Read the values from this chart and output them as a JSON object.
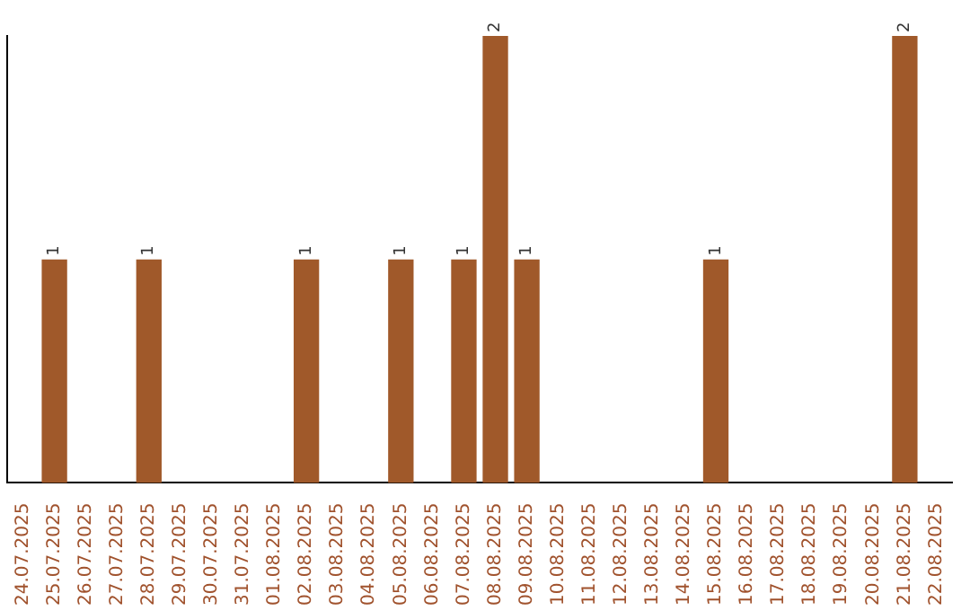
{
  "chart_data": {
    "type": "bar",
    "categories": [
      "24.07.2025",
      "25.07.2025",
      "26.07.2025",
      "27.07.2025",
      "28.07.2025",
      "29.07.2025",
      "30.07.2025",
      "31.07.2025",
      "01.08.2025",
      "02.08.2025",
      "03.08.2025",
      "04.08.2025",
      "05.08.2025",
      "06.08.2025",
      "07.08.2025",
      "08.08.2025",
      "09.08.2025",
      "10.08.2025",
      "11.08.2025",
      "12.08.2025",
      "13.08.2025",
      "14.08.2025",
      "15.08.2025",
      "16.08.2025",
      "17.08.2025",
      "18.08.2025",
      "19.08.2025",
      "20.08.2025",
      "21.08.2025",
      "22.08.2025"
    ],
    "values": [
      0,
      1,
      0,
      0,
      1,
      0,
      0,
      0,
      0,
      1,
      0,
      0,
      1,
      0,
      1,
      2,
      1,
      0,
      0,
      0,
      0,
      0,
      1,
      0,
      0,
      0,
      0,
      0,
      2,
      0
    ],
    "color": "#a0592a",
    "ylim": [
      0,
      2
    ],
    "tick_labels": "x",
    "value_labels": [
      null,
      "1",
      null,
      null,
      "1",
      null,
      null,
      null,
      null,
      "1",
      null,
      null,
      "1",
      null,
      "1",
      "2",
      "1",
      null,
      null,
      null,
      null,
      null,
      "1",
      null,
      null,
      null,
      null,
      null,
      "2",
      null
    ],
    "grid": false,
    "legend": false
  }
}
